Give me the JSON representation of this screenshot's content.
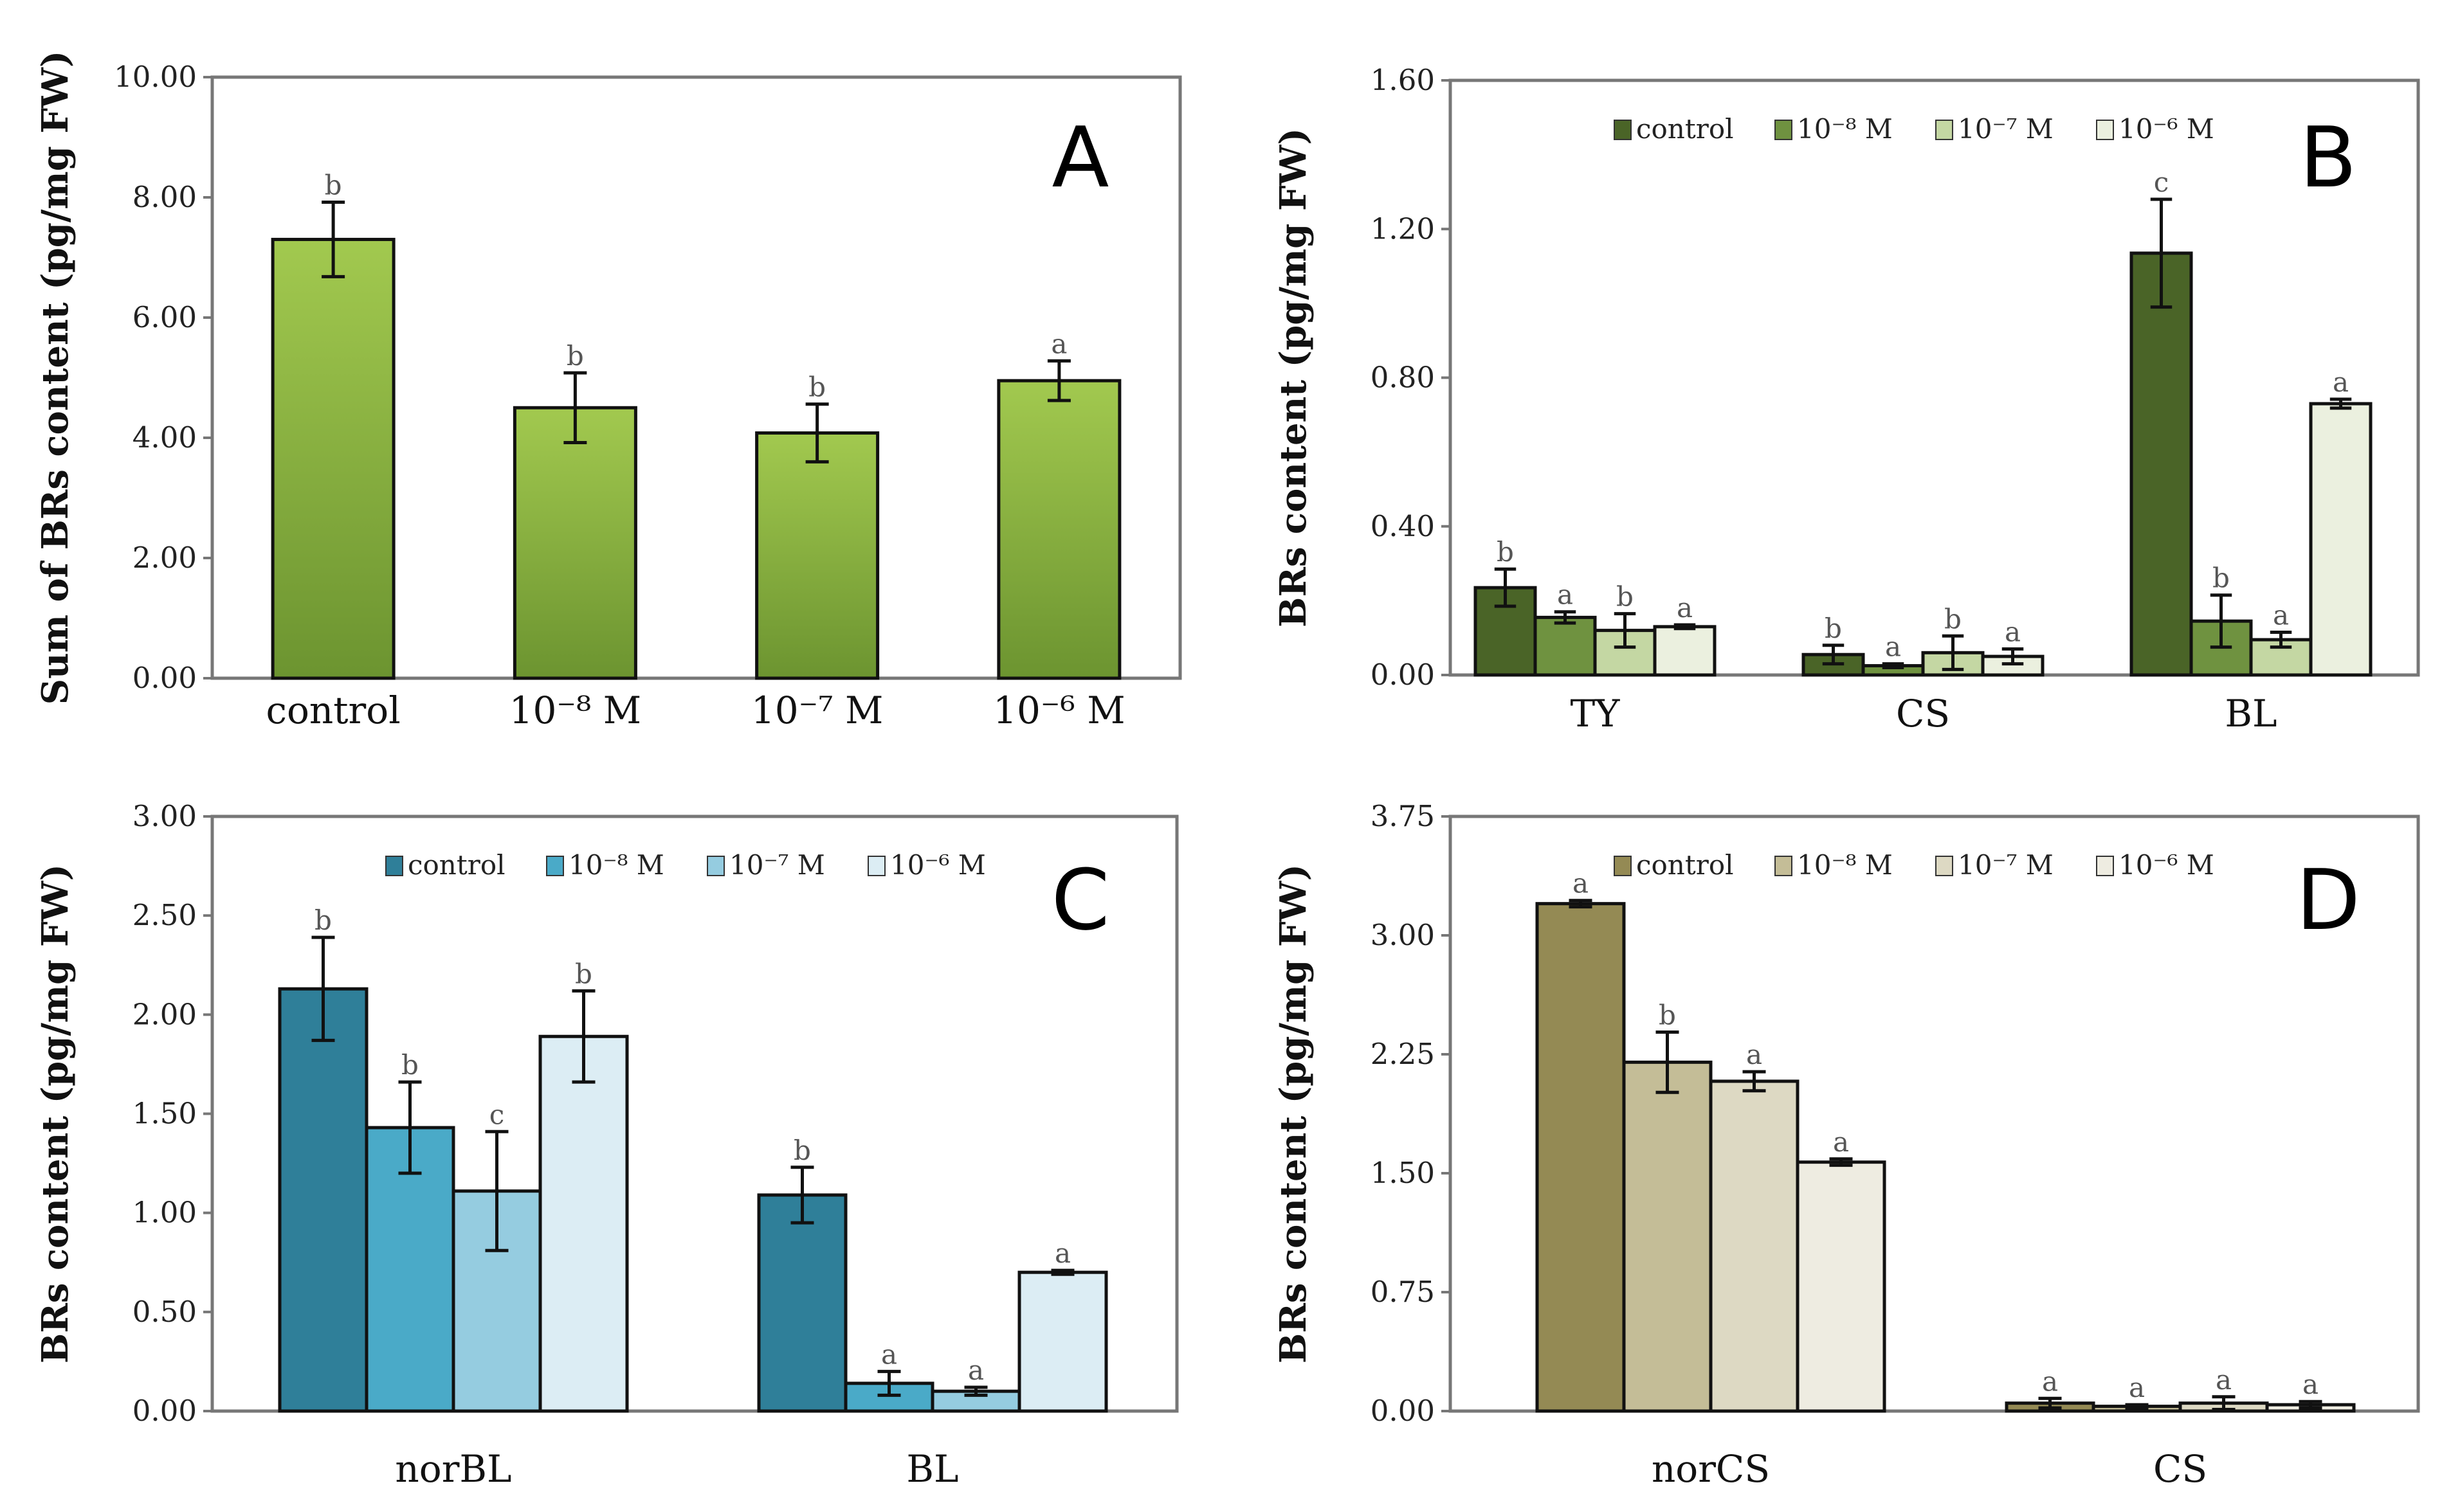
{
  "chart_data": [
    {
      "id": "A",
      "type": "bar",
      "panel_label": "A",
      "ylabel": "Sum of BRs content (pg/mg FW)",
      "ylim": [
        0,
        10
      ],
      "yticks": [
        "0.00",
        "2.00",
        "4.00",
        "6.00",
        "8.00",
        "10.00"
      ],
      "categories": [
        "control",
        "10⁻⁸ M",
        "10⁻⁷ M",
        "10⁻⁶ M"
      ],
      "series": [
        {
          "name": "Sum of BRs",
          "color": "#8cb83a",
          "values": [
            7.3,
            4.5,
            4.08,
            4.95
          ],
          "errors": [
            0.62,
            0.58,
            0.48,
            0.33
          ],
          "letters": [
            "b",
            "b",
            "b",
            "a"
          ]
        }
      ],
      "legend": false
    },
    {
      "id": "B",
      "type": "bar",
      "panel_label": "B",
      "ylabel": "BRs content (pg/mg FW)",
      "ylim": [
        0,
        1.6
      ],
      "yticks": [
        "0.00",
        "0.40",
        "0.80",
        "1.20",
        "1.60"
      ],
      "categories": [
        "TY",
        "CS",
        "BL"
      ],
      "series": [
        {
          "name": "control",
          "color": "#4a6427",
          "values": [
            0.235,
            0.055,
            1.135
          ],
          "errors": [
            0.05,
            0.025,
            0.145
          ],
          "letters": [
            "b",
            "b",
            "c"
          ]
        },
        {
          "name": "10⁻⁸ M",
          "color": "#6f9240",
          "values": [
            0.155,
            0.025,
            0.145
          ],
          "errors": [
            0.015,
            0.005,
            0.07
          ],
          "letters": [
            "a",
            "a",
            "b"
          ]
        },
        {
          "name": "10⁻⁷ M",
          "color": "#c4d7a3",
          "values": [
            0.12,
            0.06,
            0.095
          ],
          "errors": [
            0.045,
            0.045,
            0.02
          ],
          "letters": [
            "b",
            "b",
            "a"
          ]
        },
        {
          "name": "10⁻⁶ M",
          "color": "#ebf0df",
          "values": [
            0.13,
            0.05,
            0.73
          ],
          "errors": [
            0.005,
            0.02,
            0.012
          ],
          "letters": [
            "a",
            "a",
            "a"
          ]
        }
      ],
      "legend": true
    },
    {
      "id": "C",
      "type": "bar",
      "panel_label": "C",
      "ylabel": "BRs content (pg/mg FW)",
      "ylim": [
        0,
        3
      ],
      "yticks": [
        "0.00",
        "0.50",
        "1.00",
        "1.50",
        "2.00",
        "2.50",
        "3.00"
      ],
      "categories": [
        "norBL",
        "BL"
      ],
      "series": [
        {
          "name": "control",
          "color": "#2f7f99",
          "values": [
            2.13,
            1.09
          ],
          "errors": [
            0.26,
            0.14
          ],
          "letters": [
            "b",
            "b"
          ]
        },
        {
          "name": "10⁻⁸ M",
          "color": "#4aaac8",
          "values": [
            1.43,
            0.14
          ],
          "errors": [
            0.23,
            0.06
          ],
          "letters": [
            "b",
            "a"
          ]
        },
        {
          "name": "10⁻⁷ M",
          "color": "#95cce0",
          "values": [
            1.11,
            0.1
          ],
          "errors": [
            0.3,
            0.02
          ],
          "letters": [
            "c",
            "a"
          ]
        },
        {
          "name": "10⁻⁶ M",
          "color": "#dcedf4",
          "values": [
            1.89,
            0.7
          ],
          "errors": [
            0.23,
            0.01
          ],
          "letters": [
            "b",
            "a"
          ]
        }
      ],
      "legend": true
    },
    {
      "id": "D",
      "type": "bar",
      "panel_label": "D",
      "ylabel": "BRs content (pg/mg FW)",
      "ylim": [
        0,
        3.75
      ],
      "yticks": [
        "0.00",
        "0.75",
        "1.50",
        "2.25",
        "3.00",
        "3.75"
      ],
      "categories": [
        "norCS",
        "CS"
      ],
      "series": [
        {
          "name": "control",
          "color": "#948a54",
          "values": [
            3.2,
            0.05
          ],
          "errors": [
            0.02,
            0.03
          ],
          "letters": [
            "a",
            "a"
          ]
        },
        {
          "name": "10⁻⁸ M",
          "color": "#c4bd97",
          "values": [
            2.2,
            0.03
          ],
          "errors": [
            0.19,
            0.01
          ],
          "letters": [
            "b",
            "a"
          ]
        },
        {
          "name": "10⁻⁷ M",
          "color": "#ddd9c3",
          "values": [
            2.08,
            0.05
          ],
          "errors": [
            0.06,
            0.04
          ],
          "letters": [
            "a",
            "a"
          ]
        },
        {
          "name": "10⁻⁶ M",
          "color": "#eeece1",
          "values": [
            1.57,
            0.04
          ],
          "errors": [
            0.02,
            0.02
          ],
          "letters": [
            "a",
            "a"
          ]
        }
      ],
      "legend": true
    }
  ]
}
